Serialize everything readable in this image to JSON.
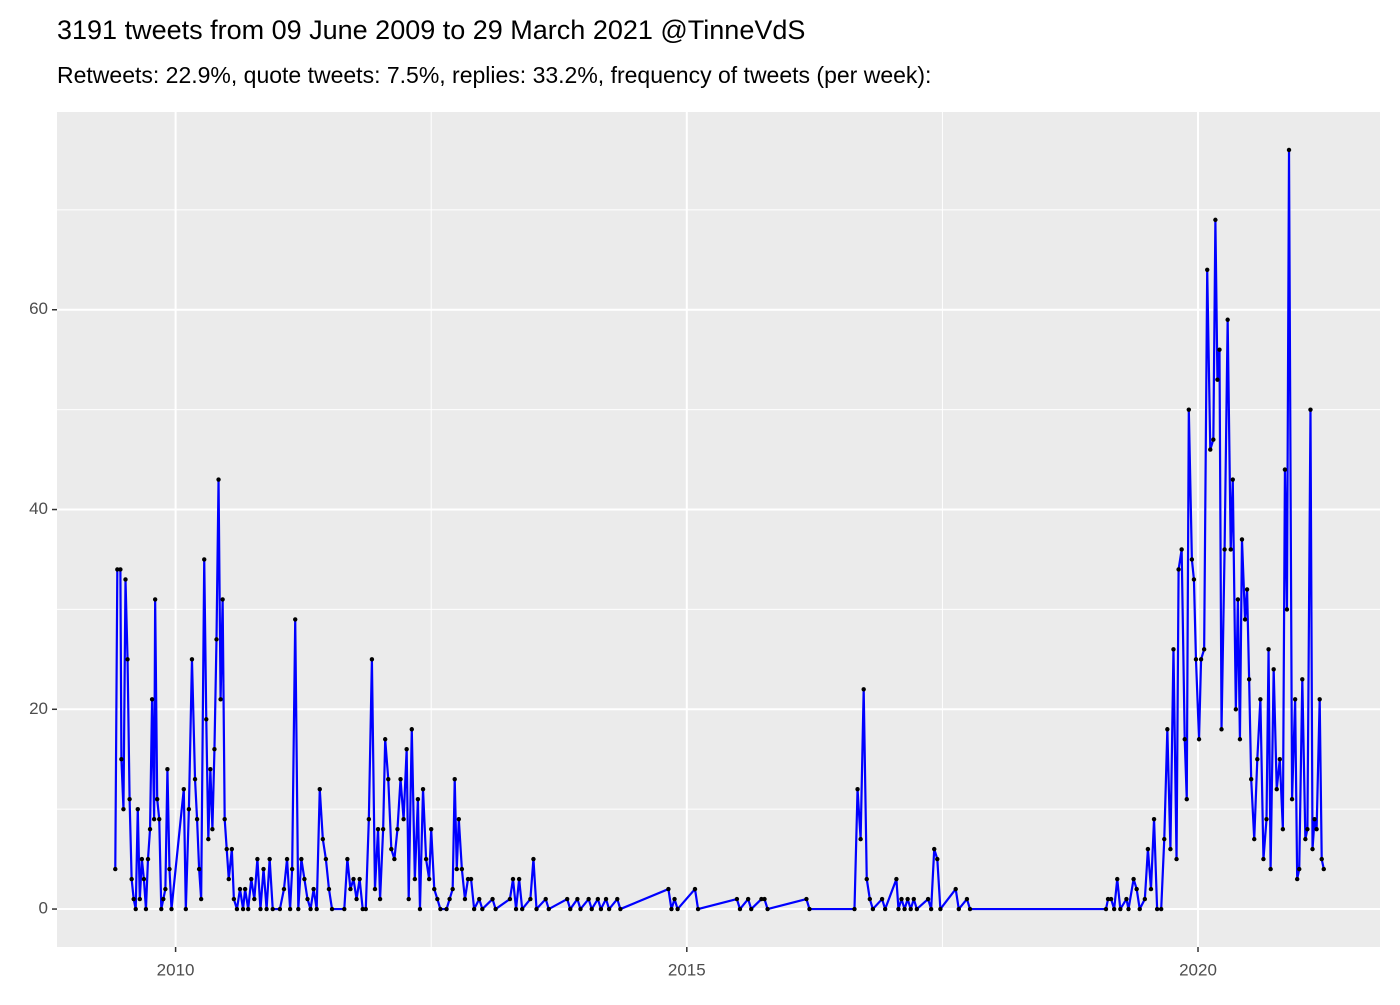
{
  "chart_data": {
    "type": "line",
    "title": "3191 tweets from 09 June 2009 to 29 March 2021 @TinneVdS",
    "subtitle": "Retweets: 22.9%, quote tweets: 7.5%, replies: 33.2%, frequency of tweets (per week):",
    "x": [
      2009.41,
      2009.43,
      2009.46,
      2009.47,
      2009.49,
      2009.51,
      2009.53,
      2009.55,
      2009.57,
      2009.59,
      2009.61,
      2009.63,
      2009.65,
      2009.67,
      2009.69,
      2009.71,
      2009.73,
      2009.75,
      2009.77,
      2009.79,
      2009.8,
      2009.82,
      2009.84,
      2009.86,
      2009.88,
      2009.9,
      2009.92,
      2009.94,
      2009.96,
      2010.08,
      2010.1,
      2010.13,
      2010.16,
      2010.19,
      2010.21,
      2010.23,
      2010.25,
      2010.28,
      2010.3,
      2010.32,
      2010.34,
      2010.36,
      2010.38,
      2010.4,
      2010.42,
      2010.44,
      2010.46,
      2010.48,
      2010.5,
      2010.52,
      2010.55,
      2010.57,
      2010.6,
      2010.63,
      2010.66,
      2010.68,
      2010.71,
      2010.74,
      2010.77,
      2010.8,
      2010.83,
      2010.86,
      2010.89,
      2010.92,
      2010.95,
      2011.02,
      2011.06,
      2011.09,
      2011.12,
      2011.14,
      2011.17,
      2011.2,
      2011.23,
      2011.26,
      2011.29,
      2011.32,
      2011.35,
      2011.38,
      2011.41,
      2011.44,
      2011.47,
      2011.5,
      2011.53,
      2011.65,
      2011.68,
      2011.71,
      2011.74,
      2011.77,
      2011.8,
      2011.83,
      2011.86,
      2011.89,
      2011.92,
      2011.95,
      2011.98,
      2012.0,
      2012.03,
      2012.05,
      2012.08,
      2012.11,
      2012.14,
      2012.17,
      2012.2,
      2012.23,
      2012.26,
      2012.28,
      2012.31,
      2012.34,
      2012.37,
      2012.39,
      2012.42,
      2012.45,
      2012.48,
      2012.5,
      2012.53,
      2012.56,
      2012.59,
      2012.65,
      2012.68,
      2012.71,
      2012.73,
      2012.75,
      2012.77,
      2012.8,
      2012.83,
      2012.86,
      2012.89,
      2012.92,
      2012.97,
      2013.0,
      2013.1,
      2013.13,
      2013.27,
      2013.3,
      2013.33,
      2013.36,
      2013.39,
      2013.47,
      2013.5,
      2013.53,
      2013.62,
      2013.65,
      2013.83,
      2013.86,
      2013.93,
      2013.96,
      2014.04,
      2014.07,
      2014.13,
      2014.16,
      2014.21,
      2014.24,
      2014.32,
      2014.35,
      2014.82,
      2014.85,
      2014.88,
      2014.91,
      2015.08,
      2015.11,
      2015.49,
      2015.52,
      2015.6,
      2015.63,
      2015.73,
      2015.76,
      2015.79,
      2016.17,
      2016.2,
      2016.64,
      2016.67,
      2016.7,
      2016.73,
      2016.76,
      2016.79,
      2016.82,
      2016.91,
      2016.94,
      2017.05,
      2017.07,
      2017.1,
      2017.13,
      2017.16,
      2017.19,
      2017.22,
      2017.25,
      2017.36,
      2017.39,
      2017.42,
      2017.45,
      2017.48,
      2017.63,
      2017.66,
      2017.74,
      2017.77,
      2019.1,
      2019.12,
      2019.15,
      2019.18,
      2019.21,
      2019.24,
      2019.3,
      2019.32,
      2019.37,
      2019.4,
      2019.43,
      2019.48,
      2019.51,
      2019.54,
      2019.57,
      2019.6,
      2019.64,
      2019.67,
      2019.7,
      2019.73,
      2019.76,
      2019.79,
      2019.81,
      2019.84,
      2019.87,
      2019.89,
      2019.91,
      2019.94,
      2019.96,
      2019.98,
      2020.01,
      2020.03,
      2020.06,
      2020.09,
      2020.12,
      2020.15,
      2020.17,
      2020.19,
      2020.21,
      2020.23,
      2020.26,
      2020.29,
      2020.32,
      2020.34,
      2020.37,
      2020.39,
      2020.41,
      2020.43,
      2020.46,
      2020.48,
      2020.5,
      2020.52,
      2020.55,
      2020.58,
      2020.61,
      2020.64,
      2020.67,
      2020.69,
      2020.71,
      2020.74,
      2020.77,
      2020.8,
      2020.83,
      2020.85,
      2020.87,
      2020.89,
      2020.92,
      2020.95,
      2020.97,
      2020.99,
      2021.02,
      2021.05,
      2021.07,
      2021.1,
      2021.12,
      2021.14,
      2021.16,
      2021.19,
      2021.21,
      2021.23
    ],
    "series": [
      {
        "color": "#0000ff",
        "point_color": "#000000",
        "values": [
          4,
          34,
          34,
          15,
          10,
          33,
          25,
          11,
          3,
          1,
          0,
          10,
          1,
          5,
          3,
          0,
          5,
          8,
          21,
          9,
          31,
          11,
          9,
          0,
          1,
          2,
          14,
          4,
          0,
          12,
          0,
          10,
          25,
          13,
          9,
          4,
          1,
          35,
          19,
          7,
          14,
          8,
          16,
          27,
          43,
          21,
          31,
          9,
          6,
          3,
          6,
          1,
          0,
          2,
          0,
          2,
          0,
          3,
          1,
          5,
          0,
          4,
          0,
          5,
          0,
          0,
          2,
          5,
          0,
          4,
          29,
          0,
          5,
          3,
          1,
          0,
          2,
          0,
          12,
          7,
          5,
          2,
          0,
          0,
          5,
          2,
          3,
          1,
          3,
          0,
          0,
          9,
          25,
          2,
          8,
          1,
          8,
          17,
          13,
          6,
          5,
          8,
          13,
          9,
          16,
          1,
          18,
          3,
          11,
          0,
          12,
          5,
          3,
          8,
          2,
          1,
          0,
          0,
          1,
          2,
          13,
          4,
          9,
          4,
          1,
          3,
          3,
          0,
          1,
          0,
          1,
          0,
          1,
          3,
          0,
          3,
          0,
          1,
          5,
          0,
          1,
          0,
          1,
          0,
          1,
          0,
          1,
          0,
          1,
          0,
          1,
          0,
          1,
          0,
          2,
          0,
          1,
          0,
          2,
          0,
          1,
          0,
          1,
          0,
          1,
          1,
          0,
          1,
          0,
          0,
          12,
          7,
          22,
          3,
          1,
          0,
          1,
          0,
          3,
          0,
          1,
          0,
          1,
          0,
          1,
          0,
          1,
          0,
          6,
          5,
          0,
          2,
          0,
          1,
          0,
          0,
          1,
          1,
          0,
          3,
          0,
          1,
          0,
          3,
          2,
          0,
          1,
          6,
          2,
          9,
          0,
          0,
          7,
          18,
          6,
          26,
          5,
          34,
          36,
          17,
          11,
          50,
          35,
          33,
          25,
          17,
          25,
          26,
          64,
          46,
          47,
          69,
          53,
          56,
          18,
          36,
          59,
          36,
          43,
          20,
          31,
          17,
          37,
          29,
          32,
          23,
          13,
          7,
          15,
          21,
          5,
          9,
          26,
          4,
          24,
          12,
          15,
          8,
          44,
          30,
          76,
          11,
          21,
          3,
          4,
          23,
          7,
          8,
          50,
          6,
          9,
          8,
          21,
          5,
          4
        ]
      }
    ],
    "xlim": [
      2008.84,
      2021.78
    ],
    "xticks": [
      2010,
      2015,
      2020
    ],
    "xminor": [
      2012.5,
      2017.5
    ],
    "ylim": [
      -3.8,
      79.8
    ],
    "yticks": [
      0,
      20,
      40,
      60
    ],
    "yminor": [
      10,
      30,
      50,
      70
    ],
    "grid": true
  }
}
